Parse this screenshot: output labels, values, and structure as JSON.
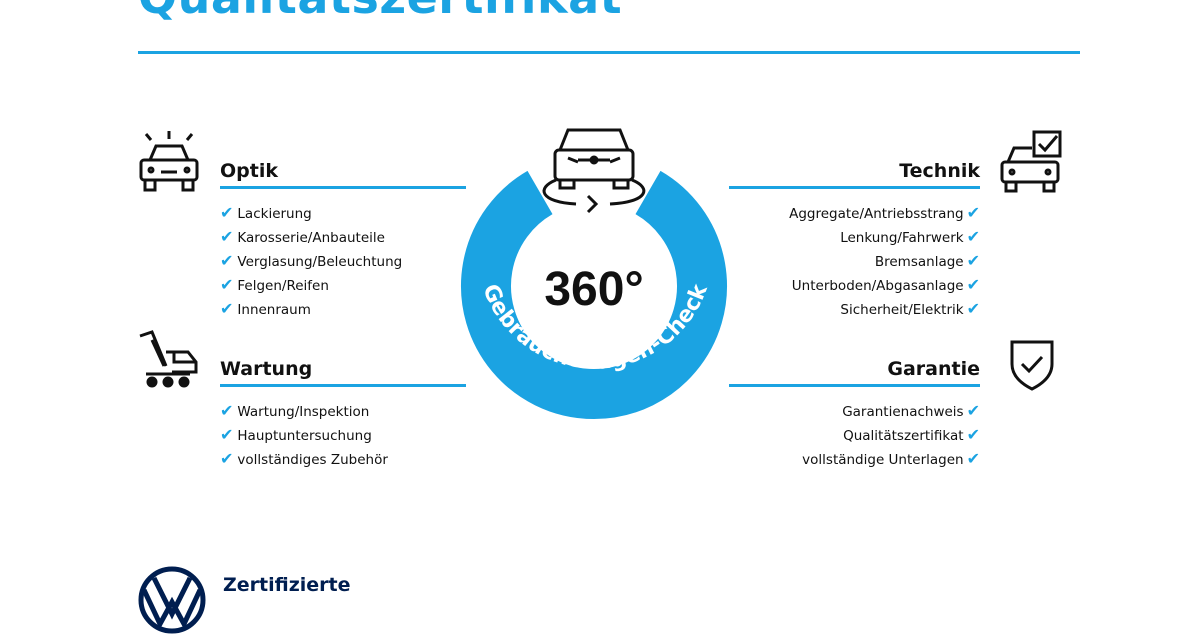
{
  "header": {
    "title": "Qualitätszertifikat"
  },
  "center": {
    "degrees": "360°",
    "ring_text": "Gebrauchtwagen-Check",
    "accent": "#1ba3e2"
  },
  "sections": {
    "optik": {
      "title": "Optik",
      "icon": "car-lights-icon",
      "items": [
        "Lackierung",
        "Karosserie/Anbauteile",
        "Verglasung/Beleuchtung",
        "Felgen/Reifen",
        "Innenraum"
      ]
    },
    "wartung": {
      "title": "Wartung",
      "icon": "service-cart-icon",
      "items": [
        "Wartung/Inspektion",
        "Hauptuntersuchung",
        "vollständiges Zubehör"
      ]
    },
    "technik": {
      "title": "Technik",
      "icon": "car-checkbox-icon",
      "items": [
        "Aggregate/Antriebsstrang",
        "Lenkung/Fahrwerk",
        "Bremsanlage",
        "Unterboden/Abgasanlage",
        "Sicherheit/Elektrik"
      ]
    },
    "garantie": {
      "title": "Garantie",
      "icon": "shield-check-icon",
      "items": [
        "Garantienachweis",
        "Qualitätszertifikat",
        "vollständige Unterlagen"
      ]
    }
  },
  "footer": {
    "brand_text": "Zertifizierte",
    "logo": "VW"
  },
  "check_glyph": "✔"
}
